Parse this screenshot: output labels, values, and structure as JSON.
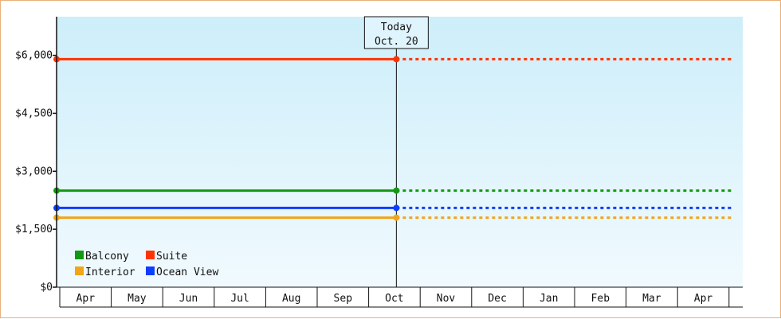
{
  "colors": {
    "border": "#e8b27a",
    "plot_top": "#cdeefa",
    "plot_bottom": "#f1fafe",
    "axis": "#111111"
  },
  "chart_data": {
    "type": "line",
    "title": "",
    "xlabel": "",
    "ylabel": "",
    "x_categories": [
      "Apr",
      "May",
      "Jun",
      "Jul",
      "Aug",
      "Sep",
      "Oct",
      "Nov",
      "Dec",
      "Jan",
      "Feb",
      "Mar",
      "Apr"
    ],
    "y_ticks": [
      "$0",
      "$1,500",
      "$3,000",
      "$4,500",
      "$6,000"
    ],
    "y_tick_values": [
      0,
      1500,
      3000,
      4500,
      6000
    ],
    "ylim": [
      0,
      7000
    ],
    "grid": false,
    "legend_position": "bottom-left",
    "today_marker": {
      "line1": "Today",
      "line2": "Oct. 20",
      "month_index": 6.6
    },
    "series": [
      {
        "name": "Balcony",
        "color": "#119911",
        "value": 2500,
        "x_start": 0,
        "x_today": 6.6,
        "x_end": 13.15
      },
      {
        "name": "Suite",
        "color": "#ff3300",
        "value": 5900,
        "x_start": 0,
        "x_today": 6.6,
        "x_end": 13.15
      },
      {
        "name": "Interior",
        "color": "#f2a516",
        "value": 1800,
        "x_start": 0,
        "x_today": 6.6,
        "x_end": 13.15
      },
      {
        "name": "Ocean View",
        "color": "#0d3dff",
        "value": 2050,
        "x_start": 0,
        "x_today": 6.6,
        "x_end": 13.15
      }
    ]
  }
}
